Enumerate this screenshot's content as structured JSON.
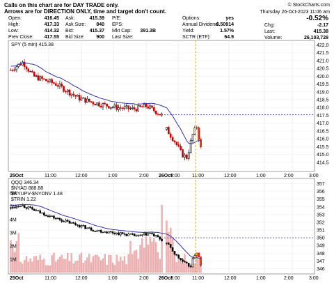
{
  "header": {
    "note_line1": "Calls on this chart are for DAY TRADE only.",
    "note_line2": "Arrows are for DIRECTION ONLY, time and target don't count.",
    "date": "Thursday  26-Oct-2023  11:06 am",
    "watermark": "© StockCharts.com"
  },
  "quote": {
    "open_label": "Open:",
    "open": "416.45",
    "high_label": "High:",
    "high": "417.33",
    "low_label": "Low:",
    "low": "414.32",
    "prev_label": "Prev Close:",
    "prev": "417.55",
    "ask_label": "Ask:",
    "ask": "415.39",
    "asksize_label": "Ask Size:",
    "asksize": "840",
    "bid_label": "Bid:",
    "bid": "415.37",
    "bidsize_label": "Bid Size:",
    "bidsize": "900",
    "pe_label": "P/E:",
    "pe": "",
    "eps_label": "EPS:",
    "eps": "",
    "mktcap_label": "Mkt Cap:",
    "mktcap": "391.3B",
    "lastsize_label": "Last Size:",
    "lastsize": "",
    "options_label": "Options:",
    "options": "yes",
    "div_label": "Annual Dividend:",
    "div": "6.50914",
    "yield_label": "Yield:",
    "yield": "1.57%",
    "sctr_label": "SCTR (ETF):",
    "sctr": "64.9",
    "chgpct": "-0.52%",
    "chg_label": "Chg:",
    "chg": "-2.17",
    "last_label": "Last:",
    "last": "415.38",
    "vol_label": "Volume:",
    "vol": "26,103,728"
  },
  "colors": {
    "up": "#000000",
    "down": "#cc0000",
    "ma": "#3333aa",
    "hilite": "#ffd700"
  },
  "chart_data": [
    {
      "type": "candlestick",
      "label": "SPY (5 min) 415.38",
      "y_range": [
        414.0,
        422.2
      ],
      "y_ticks": [
        "422.0",
        "421.5",
        "421.0",
        "420.5",
        "420.0",
        "419.5",
        "419.0",
        "418.5",
        "418.0",
        "417.5",
        "417.0",
        "416.5",
        "416.0",
        "415.5",
        "415.0",
        "414.5"
      ],
      "x_ticks": [
        "25Oct",
        "11:00",
        "12:00",
        "1:00",
        "2:00",
        "3:00",
        "26Oct",
        "11:00",
        "12:00",
        "1:00",
        "2:00",
        "3:00"
      ],
      "reference_line": 417.55,
      "annotation": "yellow vertical line at 26Oct 11:00",
      "segments": [
        [
          416.0,
          421.0
        ],
        [
          417.1,
          420.4
        ],
        [
          417.7,
          419.6
        ],
        [
          416.3,
          418.1
        ],
        [
          414.4,
          415.4
        ]
      ]
    },
    {
      "type": "line",
      "label": "QQQ 346.34",
      "legend": [
        "$NYAD 888.88",
        "$NYUPV-$NYDNV 1.48",
        "$TRIN 1.22"
      ],
      "y_right_range": [
        345.5,
        357.5
      ],
      "y_right_ticks": [
        "357",
        "356",
        "355",
        "354",
        "353",
        "352",
        "351",
        "350",
        "349",
        "348",
        "347",
        "346"
      ],
      "y_left_ticks": [
        "6M",
        "5M",
        "4M",
        "3M",
        "2M",
        "1M"
      ],
      "y_left_range": [
        0,
        7000000
      ],
      "x_ticks": [
        "25Oct",
        "11:00",
        "12:00",
        "1:00",
        "2:00",
        "3:00",
        "26Oct",
        "11:00",
        "12:00",
        "1:00",
        "2:00",
        "3:00"
      ],
      "reference_line": 350.0,
      "segments": [
        [
          352.8,
          354.6
        ],
        [
          351.5,
          352.9
        ],
        [
          349.7,
          351.3
        ],
        [
          346.2,
          348.7
        ]
      ]
    }
  ]
}
